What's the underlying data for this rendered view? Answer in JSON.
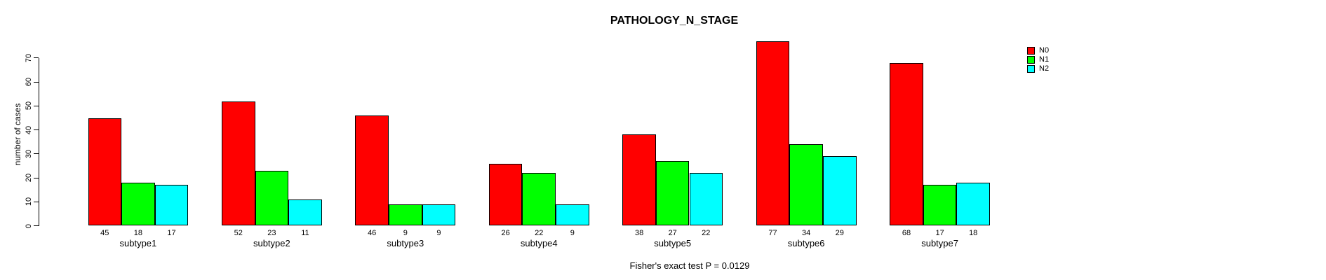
{
  "title": "PATHOLOGY_N_STAGE",
  "footer": "Fisher's exact test P = 0.0129",
  "chart_data": {
    "type": "bar",
    "title": "PATHOLOGY_N_STAGE",
    "subtitle": "",
    "categories": [
      "subtype1",
      "subtype2",
      "subtype3",
      "subtype4",
      "subtype5",
      "subtype6",
      "subtype7"
    ],
    "series": [
      {
        "name": "N0",
        "color": "#FF0000",
        "values": [
          45,
          52,
          46,
          26,
          38,
          77,
          68
        ]
      },
      {
        "name": "N1",
        "color": "#00FF00",
        "values": [
          18,
          23,
          9,
          22,
          27,
          34,
          17
        ]
      },
      {
        "name": "N2",
        "color": "#00FFFF",
        "values": [
          17,
          11,
          9,
          9,
          22,
          29,
          18
        ]
      }
    ],
    "xlabel": "",
    "ylabel": "number of cases",
    "yticks": [
      0,
      10,
      20,
      30,
      40,
      50,
      60,
      70
    ],
    "ylim": [
      0,
      70
    ],
    "grid": false,
    "legend_position": "top-right",
    "bar_value_labels": true,
    "annotation": "Fisher's exact test P = 0.0129"
  }
}
